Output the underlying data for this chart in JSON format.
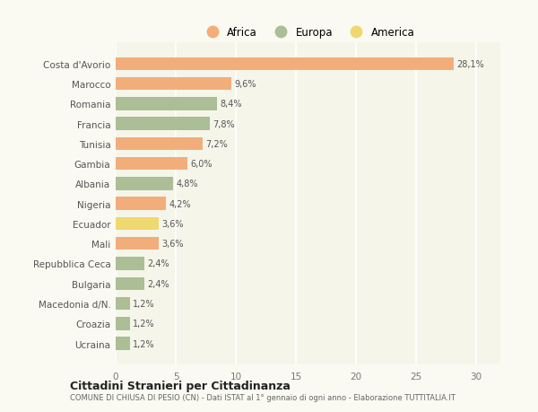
{
  "categories": [
    "Costa d'Avorio",
    "Marocco",
    "Romania",
    "Francia",
    "Tunisia",
    "Gambia",
    "Albania",
    "Nigeria",
    "Ecuador",
    "Mali",
    "Repubblica Ceca",
    "Bulgaria",
    "Macedonia d/N.",
    "Croazia",
    "Ucraina"
  ],
  "values": [
    28.1,
    9.6,
    8.4,
    7.8,
    7.2,
    6.0,
    4.8,
    4.2,
    3.6,
    3.6,
    2.4,
    2.4,
    1.2,
    1.2,
    1.2
  ],
  "labels": [
    "28,1%",
    "9,6%",
    "8,4%",
    "7,8%",
    "7,2%",
    "6,0%",
    "4,8%",
    "4,2%",
    "3,6%",
    "3,6%",
    "2,4%",
    "2,4%",
    "1,2%",
    "1,2%",
    "1,2%"
  ],
  "colors": [
    "#F2AE7A",
    "#F2AE7A",
    "#ABBE96",
    "#ABBE96",
    "#F2AE7A",
    "#F2AE7A",
    "#ABBE96",
    "#F2AE7A",
    "#F0D870",
    "#F2AE7A",
    "#ABBE96",
    "#ABBE96",
    "#ABBE96",
    "#ABBE96",
    "#ABBE96"
  ],
  "legend_labels": [
    "Africa",
    "Europa",
    "America"
  ],
  "legend_colors": [
    "#F2AE7A",
    "#ABBE96",
    "#F0D870"
  ],
  "title": "Cittadini Stranieri per Cittadinanza",
  "subtitle": "COMUNE DI CHIUSA DI PESIO (CN) - Dati ISTAT al 1° gennaio di ogni anno - Elaborazione TUTTITALIA.IT",
  "xlim": [
    0,
    32
  ],
  "xticks": [
    0,
    5,
    10,
    15,
    20,
    25,
    30
  ],
  "background_color": "#fafaf2",
  "plot_bg": "#f5f5ea"
}
